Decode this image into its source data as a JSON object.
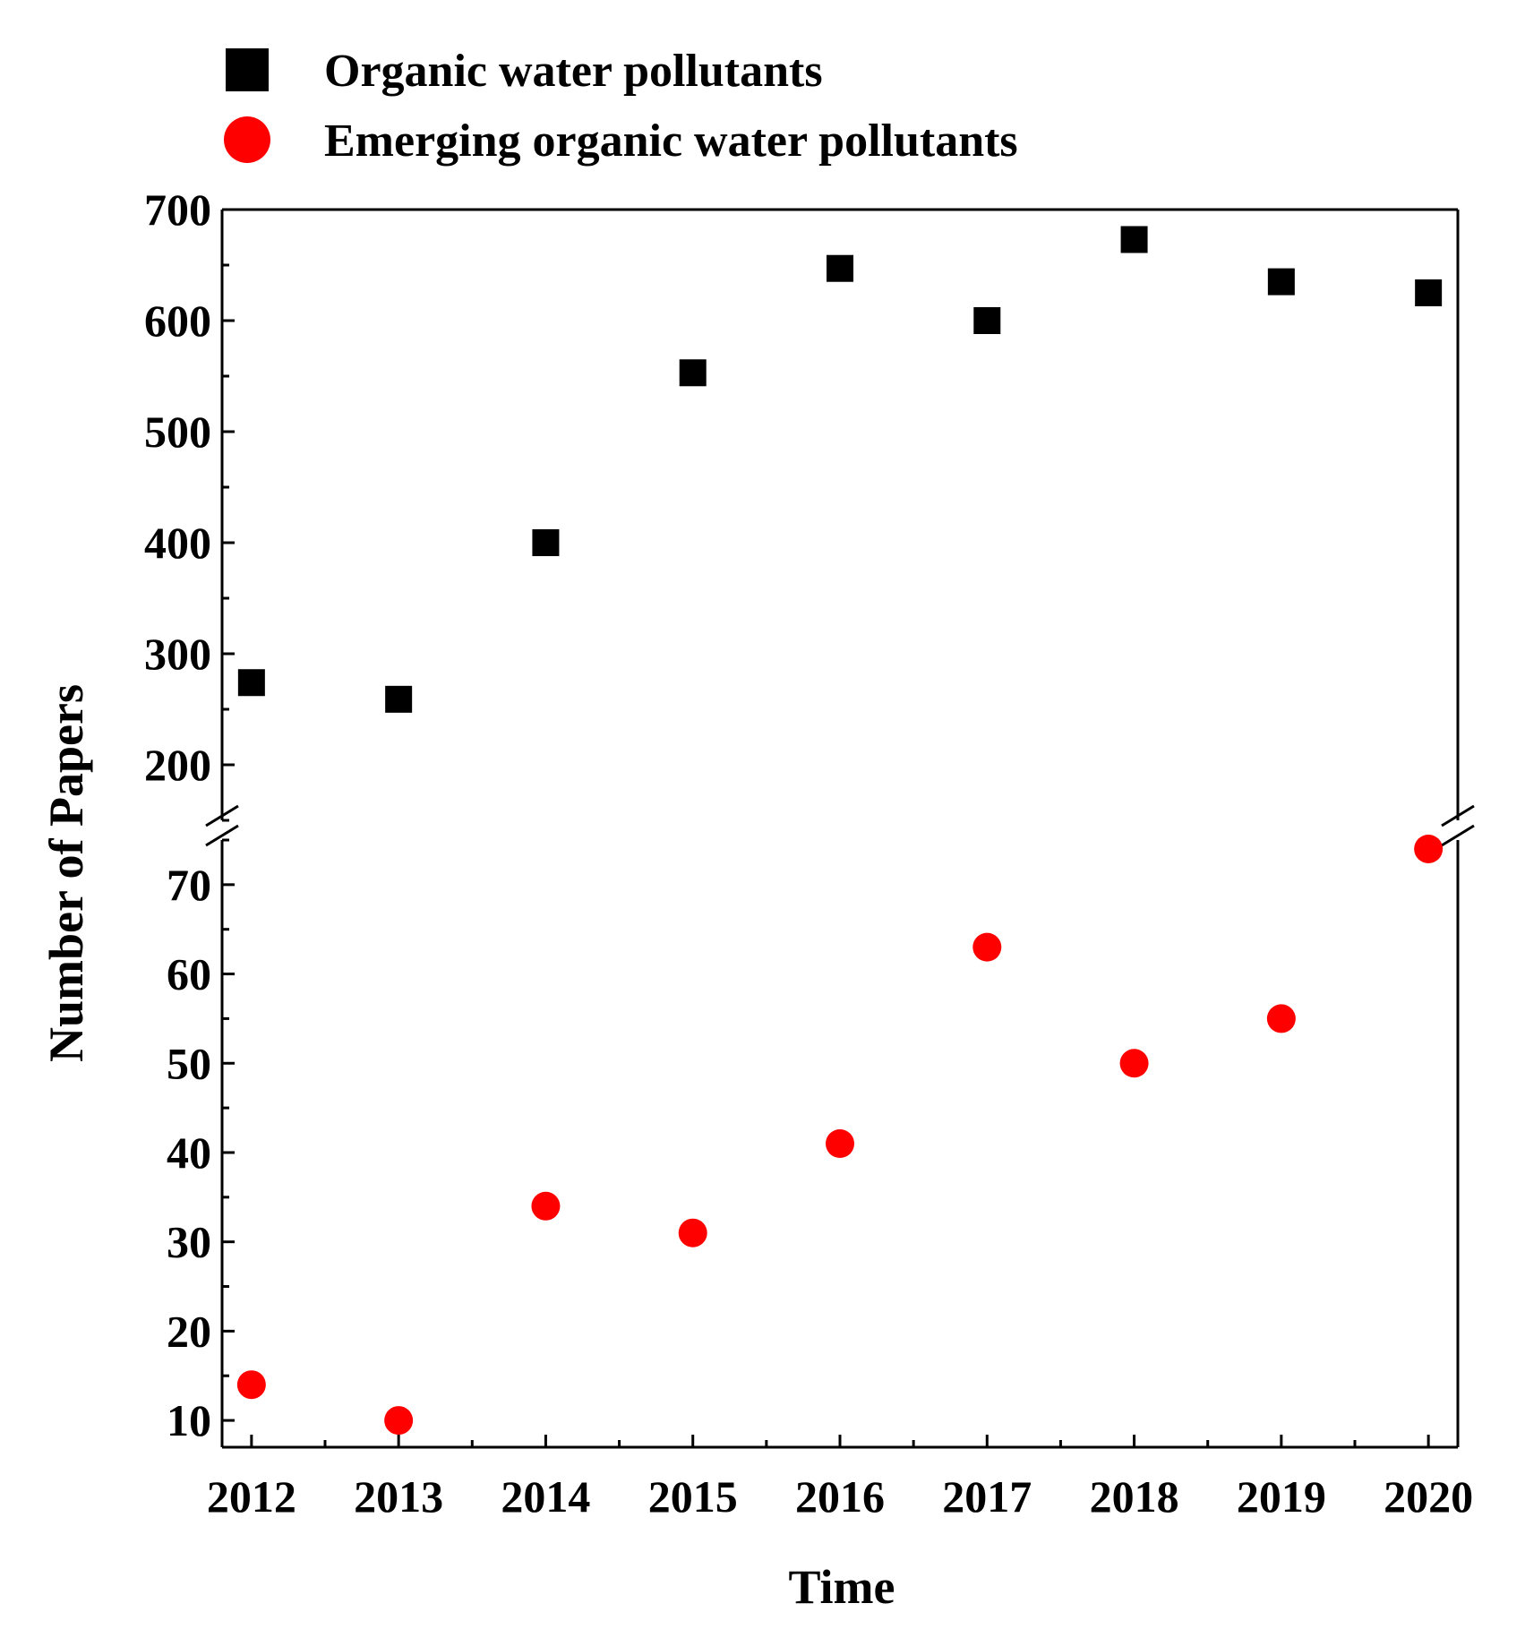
{
  "chart_data": {
    "type": "scatter",
    "x": [
      2012,
      2013,
      2014,
      2015,
      2016,
      2017,
      2018,
      2019,
      2020
    ],
    "x_tick_labels": [
      "2012",
      "2013",
      "2014",
      "2015",
      "2016",
      "2017",
      "2018",
      "2019",
      "2020"
    ],
    "xlabel": "Time",
    "ylabel": "Number of Papers",
    "broken_y_axis": true,
    "upper_ylim": [
      150,
      700
    ],
    "upper_y_ticks": [
      200,
      300,
      400,
      500,
      600,
      700
    ],
    "lower_ylim": [
      7,
      75
    ],
    "lower_y_ticks": [
      10,
      20,
      30,
      40,
      50,
      60,
      70
    ],
    "series": [
      {
        "name": "Organic water pollutants",
        "marker": "square",
        "color": "#000000",
        "segment": "upper",
        "values": [
          274,
          259,
          400,
          553,
          647,
          600,
          673,
          635,
          625
        ]
      },
      {
        "name": "Emerging organic water pollutants",
        "marker": "circle",
        "color": "#ff0000",
        "segment": "lower",
        "values": [
          14,
          10,
          34,
          31,
          41,
          63,
          50,
          55,
          74
        ]
      }
    ],
    "legend_position": "top-left"
  }
}
